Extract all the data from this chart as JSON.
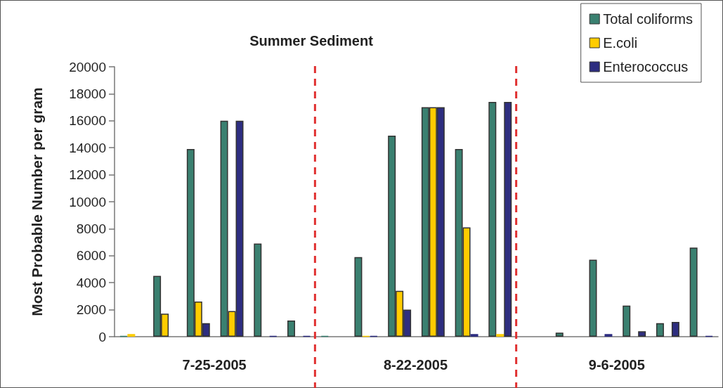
{
  "chart_data": {
    "type": "bar",
    "title": "Summer Sediment",
    "ylabel": "Most Probable Number per gram",
    "categories": [
      null,
      null,
      null,
      null,
      null,
      null,
      null,
      null,
      null,
      null,
      null,
      null,
      null,
      null,
      null,
      null,
      null,
      null
    ],
    "series": [
      {
        "name": "Total coliforms",
        "color": "#3a8070",
        "values": [
          50,
          4500,
          13900,
          16000,
          6900,
          1200,
          50,
          5900,
          14900,
          17000,
          13900,
          17400,
          null,
          300,
          5700,
          2300,
          1000,
          6600
        ]
      },
      {
        "name": "E.coli",
        "color": "#ffcc00",
        "values": [
          200,
          1700,
          2600,
          1900,
          null,
          null,
          null,
          50,
          3400,
          17000,
          8100,
          200,
          null,
          null,
          null,
          null,
          null,
          null
        ]
      },
      {
        "name": "Enterococcus",
        "color": "#2e2e80",
        "values": [
          null,
          null,
          1000,
          16000,
          50,
          50,
          null,
          50,
          2000,
          17000,
          200,
          17400,
          null,
          null,
          200,
          400,
          1100,
          50
        ]
      }
    ],
    "ylim": [
      0,
      20000
    ],
    "yticks": [
      0,
      2000,
      4000,
      6000,
      8000,
      10000,
      12000,
      14000,
      16000,
      18000,
      20000
    ],
    "annotations": [
      "7-25-2005",
      "8-22-2005",
      "9-6-2005"
    ],
    "grid": false,
    "tick_labels": "y",
    "legend": "top right"
  }
}
